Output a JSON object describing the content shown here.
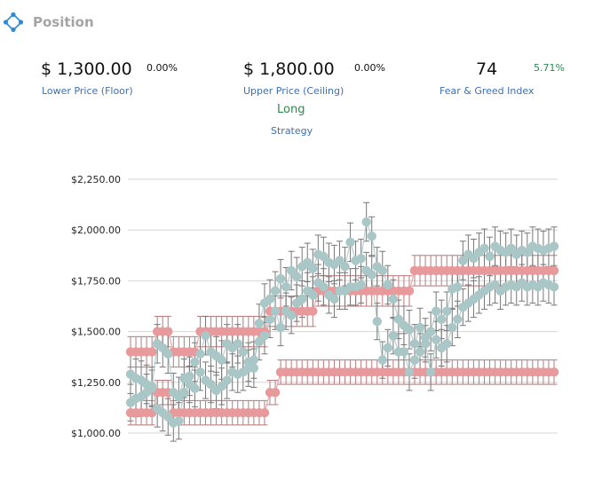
{
  "header": {
    "title": "Position",
    "icon": "diamond-nodes-icon"
  },
  "metrics": {
    "floor": {
      "value": "$ 1,300.00",
      "change": "0.00%",
      "label": "Lower Price (Floor)"
    },
    "ceiling": {
      "value": "$ 1,800.00",
      "change": "0.00%",
      "label": "Upper Price (Ceiling)"
    },
    "fear_greed": {
      "value": "74",
      "change": "5.71%",
      "label": "Fear & Greed Index"
    },
    "strategy": {
      "value": "Long",
      "label": "Strategy"
    }
  },
  "colors": {
    "floor_series": "#e8999b",
    "ceiling_series": "#e8999b",
    "price_series": "#a9c7c6",
    "positive": "#2d8a4e",
    "label": "#3f6fb0"
  },
  "chart_data": {
    "type": "scatter",
    "title": "",
    "xlabel": "",
    "ylabel": "",
    "ylim": [
      1000,
      2250
    ],
    "yticks": [
      "$1,000.00",
      "$1,250.00",
      "$1,500.00",
      "$1,750.00",
      "$2,000.00",
      "$2,250.00"
    ],
    "ytick_values": [
      1000,
      1250,
      1500,
      1750,
      2000,
      2250
    ],
    "grid": true,
    "error_bars": true,
    "series": [
      {
        "key": "floor",
        "values": [
          1100,
          1100,
          1100,
          1100,
          1100,
          1200,
          1200,
          1200,
          1100,
          1100,
          1100,
          1100,
          1100,
          1100,
          1100,
          1100,
          1100,
          1100,
          1100,
          1100,
          1100,
          1100,
          1100,
          1100,
          1100,
          1100,
          1200,
          1200,
          1300,
          1300,
          1300,
          1300,
          1300,
          1300,
          1300,
          1300,
          1300,
          1300,
          1300,
          1300,
          1300,
          1300,
          1300,
          1300,
          1300,
          1300,
          1300,
          1300,
          1300,
          1300,
          1300,
          1300,
          1300,
          1300,
          1300,
          1300,
          1300,
          1300,
          1300,
          1300,
          1300,
          1300,
          1300,
          1300,
          1300,
          1300,
          1300,
          1300,
          1300,
          1300,
          1300,
          1300,
          1300,
          1300,
          1300,
          1300,
          1300,
          1300,
          1300,
          1300
        ]
      },
      {
        "key": "ceiling",
        "values": [
          1400,
          1400,
          1400,
          1400,
          1400,
          1500,
          1500,
          1500,
          1400,
          1400,
          1400,
          1400,
          1400,
          1500,
          1500,
          1500,
          1500,
          1500,
          1500,
          1500,
          1500,
          1500,
          1500,
          1500,
          1500,
          1500,
          1600,
          1600,
          1600,
          1600,
          1600,
          1600,
          1600,
          1600,
          1600,
          1700,
          1700,
          1700,
          1700,
          1700,
          1700,
          1700,
          1700,
          1700,
          1700,
          1700,
          1700,
          1700,
          1700,
          1700,
          1700,
          1700,
          1700,
          1800,
          1800,
          1800,
          1800,
          1800,
          1800,
          1800,
          1800,
          1800,
          1800,
          1800,
          1800,
          1800,
          1800,
          1800,
          1800,
          1800,
          1800,
          1800,
          1800,
          1800,
          1800,
          1800,
          1800,
          1800,
          1800,
          1800
        ]
      },
      {
        "key": "price_high",
        "values": [
          1290,
          1270,
          1260,
          1240,
          1230,
          1440,
          1420,
          1390,
          1200,
          1180,
          1270,
          1280,
          1350,
          1390,
          1480,
          1400,
          1380,
          1360,
          1440,
          1420,
          1440,
          1400,
          1350,
          1320,
          1540,
          1640,
          1660,
          1700,
          1760,
          1720,
          1800,
          1770,
          1820,
          1840,
          1810,
          1880,
          1870,
          1840,
          1830,
          1850,
          1820,
          1940,
          1850,
          1860,
          2040,
          1970,
          1820,
          1800,
          1730,
          1660,
          1560,
          1530,
          1510,
          1440,
          1520,
          1470,
          1500,
          1600,
          1560,
          1600,
          1710,
          1720,
          1850,
          1880,
          1860,
          1890,
          1910,
          1870,
          1920,
          1900,
          1890,
          1910,
          1880,
          1900,
          1890,
          1920,
          1910,
          1900,
          1910,
          1920
        ]
      },
      {
        "key": "price_low",
        "values": [
          1150,
          1170,
          1180,
          1200,
          1220,
          1120,
          1100,
          1080,
          1050,
          1060,
          1200,
          1240,
          1220,
          1300,
          1260,
          1240,
          1210,
          1230,
          1260,
          1300,
          1290,
          1300,
          1320,
          1360,
          1450,
          1480,
          1560,
          1600,
          1520,
          1600,
          1580,
          1640,
          1660,
          1700,
          1680,
          1740,
          1720,
          1680,
          1660,
          1700,
          1700,
          1720,
          1720,
          1730,
          1800,
          1780,
          1550,
          1360,
          1420,
          1480,
          1400,
          1400,
          1300,
          1360,
          1400,
          1440,
          1300,
          1460,
          1420,
          1440,
          1520,
          1560,
          1620,
          1640,
          1660,
          1680,
          1700,
          1720,
          1730,
          1700,
          1720,
          1730,
          1720,
          1740,
          1720,
          1730,
          1720,
          1740,
          1730,
          1720
        ]
      }
    ]
  }
}
